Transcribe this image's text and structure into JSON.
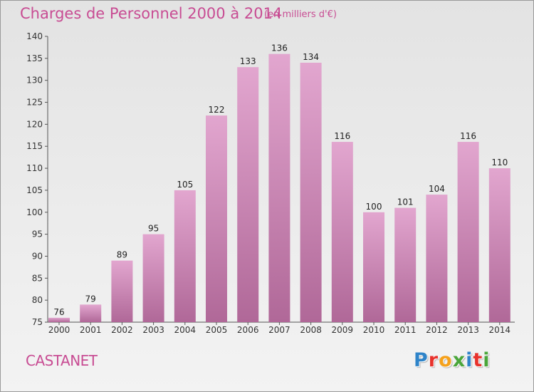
{
  "title": "Charges de Personnel 2000 à 2014",
  "subtitle": "(en milliers d'€)",
  "commune": "CASTANET",
  "brand": {
    "text": "Proxiti",
    "letter_colors": [
      "#2f84c9",
      "#e8322c",
      "#f5a11b",
      "#4aa63a",
      "#2f84c9",
      "#e8322c",
      "#4aa63a"
    ]
  },
  "colors": {
    "accent": "#c84c93",
    "bar_light": "#e2a6cf",
    "bar_dark": "#b06898"
  },
  "chart_data": {
    "type": "bar",
    "categories": [
      "2000",
      "2001",
      "2002",
      "2003",
      "2004",
      "2005",
      "2006",
      "2007",
      "2008",
      "2009",
      "2010",
      "2011",
      "2012",
      "2013",
      "2014"
    ],
    "values": [
      76,
      79,
      89,
      95,
      105,
      122,
      133,
      136,
      134,
      116,
      100,
      101,
      104,
      116,
      110
    ],
    "ylim": [
      75,
      140
    ],
    "yticks": [
      75,
      80,
      85,
      90,
      95,
      100,
      105,
      110,
      115,
      120,
      125,
      130,
      135,
      140
    ],
    "grid": false,
    "legend": "none"
  }
}
